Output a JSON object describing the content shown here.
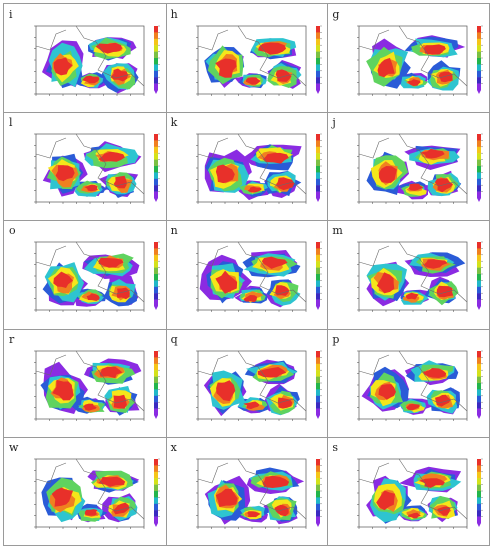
{
  "panels": [
    {
      "label": "i"
    },
    {
      "label": "h"
    },
    {
      "label": "g"
    },
    {
      "label": "l"
    },
    {
      "label": "k"
    },
    {
      "label": "j"
    },
    {
      "label": "o"
    },
    {
      "label": "n"
    },
    {
      "label": "m"
    },
    {
      "label": "r"
    },
    {
      "label": "q"
    },
    {
      "label": "p"
    },
    {
      "label": "w"
    },
    {
      "label": "x"
    },
    {
      "label": "s"
    }
  ],
  "colorbar": {
    "colors": [
      "#e8302a",
      "#f08020",
      "#f5c518",
      "#d4e21a",
      "#7bc043",
      "#23b54b",
      "#20b8c8",
      "#2a5bd7",
      "#3a2ac0",
      "#8a2be2"
    ]
  },
  "field_colors": {
    "high": "#e8302a",
    "mid_high": "#f08020",
    "mid": "#f5e61a",
    "mid_low": "#5fd35f",
    "low": "#2ec4d0",
    "lower": "#2a5bd7",
    "lowest": "#8a2be2",
    "border": "#6a6a6a"
  }
}
